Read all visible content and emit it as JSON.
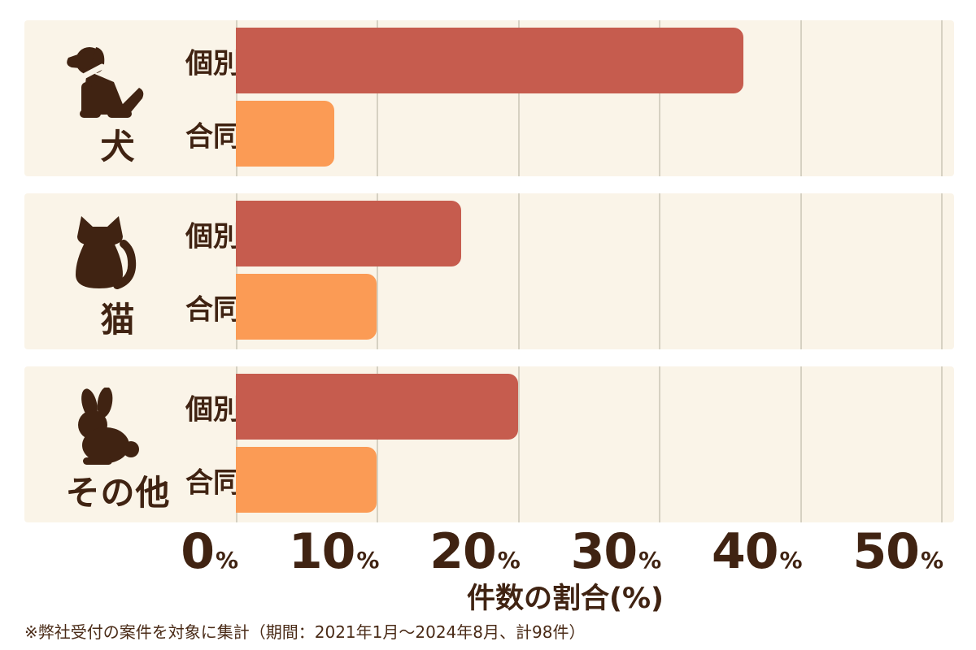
{
  "colors": {
    "individual_bar": "#C65C4E",
    "joint_bar": "#FB9B55",
    "panel_background": "#FAF4E8",
    "text_ink": "#402312",
    "gridline": "#D6D1C2"
  },
  "chart_data": {
    "type": "bar",
    "orientation": "horizontal",
    "title": "",
    "xlabel": "件数の割合(%)",
    "ylabel": "",
    "xlim": [
      0,
      50
    ],
    "grid": true,
    "x_ticks": [
      "0",
      "10",
      "20",
      "30",
      "40",
      "50"
    ],
    "tick_unit": "%",
    "series": [
      {
        "name": "個別",
        "color": "#C65C4E"
      },
      {
        "name": "合同",
        "color": "#FB9B55"
      }
    ],
    "groups": [
      {
        "category": "犬",
        "icon": "dog-icon",
        "bars": [
          {
            "label": "個別",
            "value": 36
          },
          {
            "label": "合同",
            "value": 7
          }
        ]
      },
      {
        "category": "猫",
        "icon": "cat-icon",
        "bars": [
          {
            "label": "個別",
            "value": 16
          },
          {
            "label": "合同",
            "value": 10
          }
        ]
      },
      {
        "category": "その他",
        "icon": "rabbit-icon",
        "bars": [
          {
            "label": "個別",
            "value": 20
          },
          {
            "label": "合同",
            "value": 10
          }
        ]
      }
    ]
  },
  "footer": {
    "note": "※弊社受付の案件を対象に集計（期間：2021年1月〜2024年8月、計98件）"
  }
}
